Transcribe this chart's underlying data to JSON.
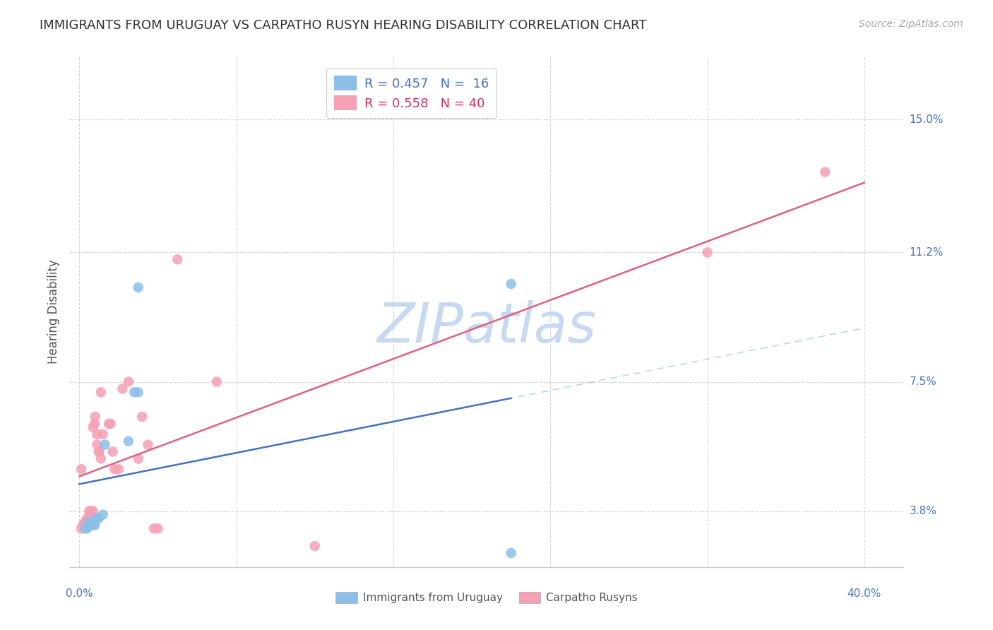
{
  "title": "IMMIGRANTS FROM URUGUAY VS CARPATHO RUSYN HEARING DISABILITY CORRELATION CHART",
  "source": "Source: ZipAtlas.com",
  "ylabel": "Hearing Disability",
  "ytick_labels": [
    "3.8%",
    "7.5%",
    "11.2%",
    "15.0%"
  ],
  "ytick_values": [
    0.038,
    0.075,
    0.112,
    0.15
  ],
  "xtick_values": [
    0.0,
    0.08,
    0.16,
    0.24,
    0.32,
    0.4
  ],
  "xlim": [
    -0.005,
    0.42
  ],
  "ylim": [
    0.022,
    0.168
  ],
  "series1_name": "Immigrants from Uruguay",
  "series2_name": "Carpatho Rusyns",
  "series1_color": "#8bbfe8",
  "series2_color": "#f4a0b5",
  "series1_line_color": "#4472c4",
  "series2_line_color": "#e06080",
  "watermark_color": "#c8d8f0",
  "background_color": "#ffffff",
  "grid_color": "#cccccc",
  "axis_label_color": "#4472c4",
  "title_color": "#333333",
  "source_color": "#aaaaaa",
  "ylabel_color": "#555555",
  "series1_x": [
    0.003,
    0.004,
    0.005,
    0.006,
    0.007,
    0.008,
    0.009,
    0.01,
    0.012,
    0.013,
    0.025,
    0.028,
    0.03,
    0.03,
    0.22,
    0.22
  ],
  "series1_y": [
    0.033,
    0.033,
    0.035,
    0.034,
    0.034,
    0.034,
    0.036,
    0.036,
    0.037,
    0.057,
    0.058,
    0.072,
    0.072,
    0.102,
    0.026,
    0.103
  ],
  "series2_x": [
    0.001,
    0.001,
    0.002,
    0.002,
    0.003,
    0.003,
    0.004,
    0.004,
    0.005,
    0.005,
    0.006,
    0.006,
    0.007,
    0.007,
    0.008,
    0.008,
    0.009,
    0.009,
    0.01,
    0.01,
    0.011,
    0.011,
    0.012,
    0.015,
    0.016,
    0.017,
    0.018,
    0.02,
    0.022,
    0.025,
    0.03,
    0.032,
    0.035,
    0.038,
    0.04,
    0.05,
    0.07,
    0.12,
    0.32,
    0.38
  ],
  "series2_y": [
    0.033,
    0.05,
    0.034,
    0.034,
    0.034,
    0.035,
    0.035,
    0.036,
    0.036,
    0.038,
    0.037,
    0.038,
    0.038,
    0.062,
    0.063,
    0.065,
    0.057,
    0.06,
    0.055,
    0.055,
    0.053,
    0.072,
    0.06,
    0.063,
    0.063,
    0.055,
    0.05,
    0.05,
    0.073,
    0.075,
    0.053,
    0.065,
    0.057,
    0.033,
    0.033,
    0.11,
    0.075,
    0.028,
    0.112,
    0.135
  ],
  "legend1_label": "R = 0.457   N =  16",
  "legend2_label": "R = 0.558   N = 40",
  "legend1_color": "#4472c4",
  "legend2_color": "#cc3366"
}
